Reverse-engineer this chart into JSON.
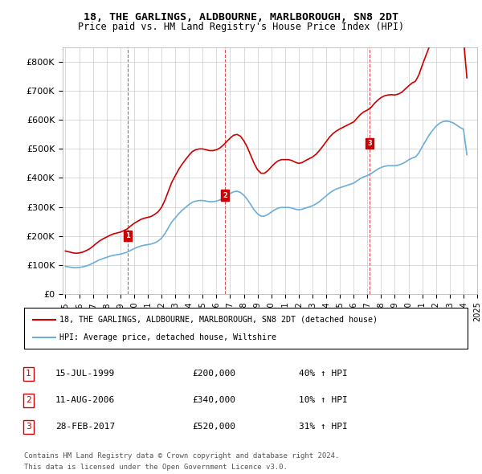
{
  "title": "18, THE GARLINGS, ALDBOURNE, MARLBOROUGH, SN8 2DT",
  "subtitle": "Price paid vs. HM Land Registry's House Price Index (HPI)",
  "ylabel": "",
  "ylim": [
    0,
    850000
  ],
  "yticks": [
    0,
    100000,
    200000,
    300000,
    400000,
    500000,
    600000,
    700000,
    800000
  ],
  "ytick_labels": [
    "£0",
    "£100K",
    "£200K",
    "£300K",
    "£400K",
    "£500K",
    "£600K",
    "£700K",
    "£800K"
  ],
  "hpi_color": "#6baed6",
  "price_color": "#cc0000",
  "background_color": "#ffffff",
  "grid_color": "#cccccc",
  "legend_label_price": "18, THE GARLINGS, ALDBOURNE, MARLBOROUGH, SN8 2DT (detached house)",
  "legend_label_hpi": "HPI: Average price, detached house, Wiltshire",
  "transactions": [
    {
      "num": 1,
      "date": "15-JUL-1999",
      "price": 200000,
      "pct": "40%",
      "year": 1999.54
    },
    {
      "num": 2,
      "date": "11-AUG-2006",
      "price": 340000,
      "pct": "10%",
      "year": 2006.62
    },
    {
      "num": 3,
      "date": "28-FEB-2017",
      "price": 520000,
      "pct": "31%",
      "year": 2017.16
    }
  ],
  "footer1": "Contains HM Land Registry data © Crown copyright and database right 2024.",
  "footer2": "This data is licensed under the Open Government Licence v3.0.",
  "hpi_data": {
    "years": [
      1995.0,
      1995.25,
      1995.5,
      1995.75,
      1996.0,
      1996.25,
      1996.5,
      1996.75,
      1997.0,
      1997.25,
      1997.5,
      1997.75,
      1998.0,
      1998.25,
      1998.5,
      1998.75,
      1999.0,
      1999.25,
      1999.5,
      1999.75,
      2000.0,
      2000.25,
      2000.5,
      2000.75,
      2001.0,
      2001.25,
      2001.5,
      2001.75,
      2002.0,
      2002.25,
      2002.5,
      2002.75,
      2003.0,
      2003.25,
      2003.5,
      2003.75,
      2004.0,
      2004.25,
      2004.5,
      2004.75,
      2005.0,
      2005.25,
      2005.5,
      2005.75,
      2006.0,
      2006.25,
      2006.5,
      2006.75,
      2007.0,
      2007.25,
      2007.5,
      2007.75,
      2008.0,
      2008.25,
      2008.5,
      2008.75,
      2009.0,
      2009.25,
      2009.5,
      2009.75,
      2010.0,
      2010.25,
      2010.5,
      2010.75,
      2011.0,
      2011.25,
      2011.5,
      2011.75,
      2012.0,
      2012.25,
      2012.5,
      2012.75,
      2013.0,
      2013.25,
      2013.5,
      2013.75,
      2014.0,
      2014.25,
      2014.5,
      2014.75,
      2015.0,
      2015.25,
      2015.5,
      2015.75,
      2016.0,
      2016.25,
      2016.5,
      2016.75,
      2017.0,
      2017.25,
      2017.5,
      2017.75,
      2018.0,
      2018.25,
      2018.5,
      2018.75,
      2019.0,
      2019.25,
      2019.5,
      2019.75,
      2020.0,
      2020.25,
      2020.5,
      2020.75,
      2021.0,
      2021.25,
      2021.5,
      2021.75,
      2022.0,
      2022.25,
      2022.5,
      2022.75,
      2023.0,
      2023.25,
      2023.5,
      2023.75,
      2024.0,
      2024.25
    ],
    "values": [
      95000,
      93000,
      91000,
      90000,
      91000,
      93000,
      96000,
      100000,
      106000,
      112000,
      118000,
      122000,
      126000,
      130000,
      133000,
      135000,
      137000,
      140000,
      144000,
      150000,
      156000,
      161000,
      165000,
      168000,
      170000,
      172000,
      176000,
      182000,
      192000,
      208000,
      228000,
      248000,
      262000,
      276000,
      288000,
      298000,
      308000,
      316000,
      320000,
      322000,
      322000,
      320000,
      318000,
      318000,
      320000,
      324000,
      330000,
      338000,
      346000,
      352000,
      354000,
      350000,
      340000,
      326000,
      308000,
      290000,
      276000,
      268000,
      268000,
      274000,
      282000,
      290000,
      296000,
      298000,
      298000,
      298000,
      296000,
      292000,
      290000,
      292000,
      296000,
      300000,
      304000,
      310000,
      318000,
      328000,
      338000,
      348000,
      356000,
      362000,
      366000,
      370000,
      374000,
      378000,
      382000,
      390000,
      398000,
      404000,
      408000,
      414000,
      422000,
      430000,
      436000,
      440000,
      442000,
      442000,
      442000,
      444000,
      448000,
      454000,
      462000,
      468000,
      472000,
      486000,
      508000,
      528000,
      548000,
      564000,
      578000,
      588000,
      594000,
      596000,
      594000,
      590000,
      582000,
      574000,
      568000,
      480000
    ]
  },
  "price_data": {
    "years": [
      1995.0,
      1995.25,
      1995.5,
      1995.75,
      1996.0,
      1996.25,
      1996.5,
      1996.75,
      1997.0,
      1997.25,
      1997.5,
      1997.75,
      1998.0,
      1998.25,
      1998.5,
      1998.75,
      1999.0,
      1999.25,
      1999.5,
      1999.75,
      2000.0,
      2000.25,
      2000.5,
      2000.75,
      2001.0,
      2001.25,
      2001.5,
      2001.75,
      2002.0,
      2002.25,
      2002.5,
      2002.75,
      2003.0,
      2003.25,
      2003.5,
      2003.75,
      2004.0,
      2004.25,
      2004.5,
      2004.75,
      2005.0,
      2005.25,
      2005.5,
      2005.75,
      2006.0,
      2006.25,
      2006.5,
      2006.75,
      2007.0,
      2007.25,
      2007.5,
      2007.75,
      2008.0,
      2008.25,
      2008.5,
      2008.75,
      2009.0,
      2009.25,
      2009.5,
      2009.75,
      2010.0,
      2010.25,
      2010.5,
      2010.75,
      2011.0,
      2011.25,
      2011.5,
      2011.75,
      2012.0,
      2012.25,
      2012.5,
      2012.75,
      2013.0,
      2013.25,
      2013.5,
      2013.75,
      2014.0,
      2014.25,
      2014.5,
      2014.75,
      2015.0,
      2015.25,
      2015.5,
      2015.75,
      2016.0,
      2016.25,
      2016.5,
      2016.75,
      2017.0,
      2017.25,
      2017.5,
      2017.75,
      2018.0,
      2018.25,
      2018.5,
      2018.75,
      2019.0,
      2019.25,
      2019.5,
      2019.75,
      2020.0,
      2020.25,
      2020.5,
      2020.75,
      2021.0,
      2021.25,
      2021.5,
      2021.75,
      2022.0,
      2022.25,
      2022.5,
      2022.75,
      2023.0,
      2023.25,
      2023.5,
      2023.75,
      2024.0,
      2024.25
    ],
    "values": [
      148000,
      145000,
      142000,
      140000,
      141000,
      144000,
      149000,
      155000,
      164000,
      174000,
      183000,
      190000,
      196000,
      202000,
      207000,
      210000,
      213000,
      218000,
      224000,
      234000,
      243000,
      250000,
      257000,
      261000,
      264000,
      267000,
      274000,
      283000,
      298000,
      323000,
      354000,
      385000,
      407000,
      429000,
      447000,
      463000,
      478000,
      491000,
      497000,
      500000,
      500000,
      497000,
      494000,
      494000,
      497000,
      503000,
      513000,
      525000,
      537000,
      547000,
      550000,
      544000,
      528000,
      506000,
      478000,
      450000,
      428000,
      416000,
      416000,
      425000,
      438000,
      450000,
      459000,
      463000,
      463000,
      463000,
      460000,
      454000,
      450000,
      453000,
      460000,
      466000,
      472000,
      481000,
      494000,
      509000,
      525000,
      541000,
      553000,
      562000,
      569000,
      575000,
      581000,
      587000,
      593000,
      606000,
      619000,
      628000,
      634000,
      642000,
      656000,
      668000,
      677000,
      683000,
      686000,
      687000,
      686000,
      689000,
      695000,
      706000,
      717000,
      727000,
      733000,
      755000,
      789000,
      820000,
      851000,
      876000,
      897000,
      913000,
      923000,
      925000,
      921000,
      916000,
      904000,
      891000,
      882000,
      745000
    ]
  }
}
